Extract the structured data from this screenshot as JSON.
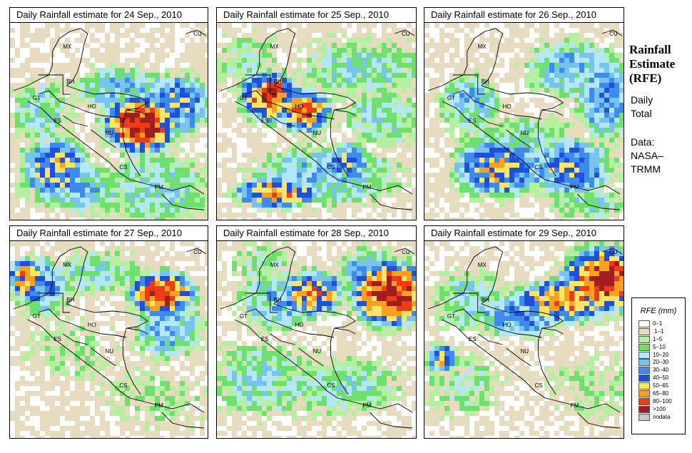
{
  "panels": [
    {
      "title": "Daily Rainfall estimate for  24 Sep., 2010"
    },
    {
      "title": "Daily Rainfall estimate for  25 Sep., 2010"
    },
    {
      "title": "Daily Rainfall estimate for  26 Sep., 2010"
    },
    {
      "title": "Daily Rainfall estimate for  27 Sep., 2010"
    },
    {
      "title": "Daily Rainfall estimate for  28 Sep., 2010"
    },
    {
      "title": "Daily Rainfall estimate for  29 Sep., 2010"
    }
  ],
  "country_labels": [
    "CU",
    "MX",
    "BH",
    "GT",
    "HO",
    "ES",
    "NU",
    "CS",
    "PM"
  ],
  "side": {
    "title_line1": "Rainfall",
    "title_line2": "Estimate",
    "title_line3": "(RFE)",
    "sub1": "Daily",
    "sub2": "Total",
    "sub3": "Data:",
    "sub4": "NASA–",
    "sub5": "TRMM"
  },
  "legend": {
    "title": "RFE (mm)",
    "items": [
      {
        "label": "0–1",
        "color": "#ffffff"
      },
      {
        "label": ".1–1",
        "color": "#e8dcc0"
      },
      {
        "label": "1–5",
        "color": "#b4f0a0"
      },
      {
        "label": "5–10",
        "color": "#6ee06e"
      },
      {
        "label": "10–20",
        "color": "#b4e8f8"
      },
      {
        "label": "20–30",
        "color": "#78c4f0"
      },
      {
        "label": "30–40",
        "color": "#3c8cf0"
      },
      {
        "label": "40–50",
        "color": "#1e50dc"
      },
      {
        "label": "50–65",
        "color": "#ffe664"
      },
      {
        "label": "65–80",
        "color": "#ffa01e"
      },
      {
        "label": "80–100",
        "color": "#f03c14"
      },
      {
        "label": ">100",
        "color": "#a01e1e"
      },
      {
        "label": "nodata",
        "color": "#c8c8c8"
      }
    ]
  }
}
